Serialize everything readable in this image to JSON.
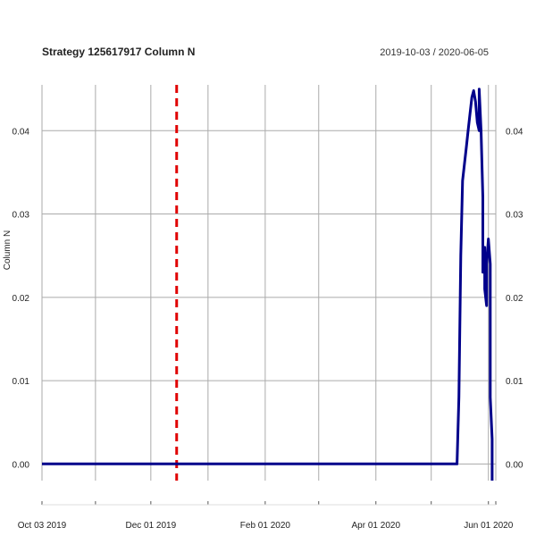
{
  "chart_data": {
    "type": "line",
    "title": "Strategy 125617917 Column N",
    "date_range": "2019-10-03 / 2020-06-05",
    "ylabel": "Column N",
    "xlabel": "",
    "x_range": [
      "2019-10-03",
      "2020-06-05"
    ],
    "ylim": [
      -0.002,
      0.0455
    ],
    "x_ticks": [
      {
        "date": "2019-10-03",
        "label": "Oct 03 2019"
      },
      {
        "date": "2019-12-01",
        "label": "Dec 01 2019"
      },
      {
        "date": "2020-02-01",
        "label": "Feb 01 2020"
      },
      {
        "date": "2020-04-01",
        "label": "Apr 01 2020"
      },
      {
        "date": "2020-06-01",
        "label": "Jun 01 2020"
      }
    ],
    "minor_x_ticks": [
      "2019-11-01",
      "2020-01-01",
      "2020-03-01",
      "2020-05-01"
    ],
    "y_ticks": [
      {
        "value": 0.0,
        "label": "0.00"
      },
      {
        "value": 0.01,
        "label": "0.01"
      },
      {
        "value": 0.02,
        "label": "0.02"
      },
      {
        "value": 0.03,
        "label": "0.03"
      },
      {
        "value": 0.04,
        "label": "0.04"
      }
    ],
    "grid": true,
    "marker_line": {
      "date": "2019-12-15",
      "color": "#e00000",
      "style": "dashed"
    },
    "series": [
      {
        "color": "#00008b",
        "points": [
          [
            "2019-10-03",
            0.0
          ],
          [
            "2020-05-15",
            0.0
          ],
          [
            "2020-05-16",
            0.008
          ],
          [
            "2020-05-17",
            0.025
          ],
          [
            "2020-05-18",
            0.034
          ],
          [
            "2020-05-19",
            0.036
          ],
          [
            "2020-05-20",
            0.038
          ],
          [
            "2020-05-21",
            0.04
          ],
          [
            "2020-05-22",
            0.042
          ],
          [
            "2020-05-23",
            0.044
          ],
          [
            "2020-05-24",
            0.0448
          ],
          [
            "2020-05-25",
            0.0435
          ],
          [
            "2020-05-26",
            0.041
          ],
          [
            "2020-05-27",
            0.04
          ],
          [
            "2020-05-27",
            0.045
          ],
          [
            "2020-05-28",
            0.04
          ],
          [
            "2020-05-29",
            0.032
          ],
          [
            "2020-05-29",
            0.023
          ],
          [
            "2020-05-30",
            0.026
          ],
          [
            "2020-05-30",
            0.021
          ],
          [
            "2020-05-31",
            0.019
          ],
          [
            "2020-05-31",
            0.024
          ],
          [
            "2020-06-01",
            0.027
          ],
          [
            "2020-06-02",
            0.024
          ],
          [
            "2020-06-02",
            0.008
          ],
          [
            "2020-06-03",
            0.003
          ],
          [
            "2020-06-03",
            -0.002
          ]
        ]
      }
    ]
  }
}
